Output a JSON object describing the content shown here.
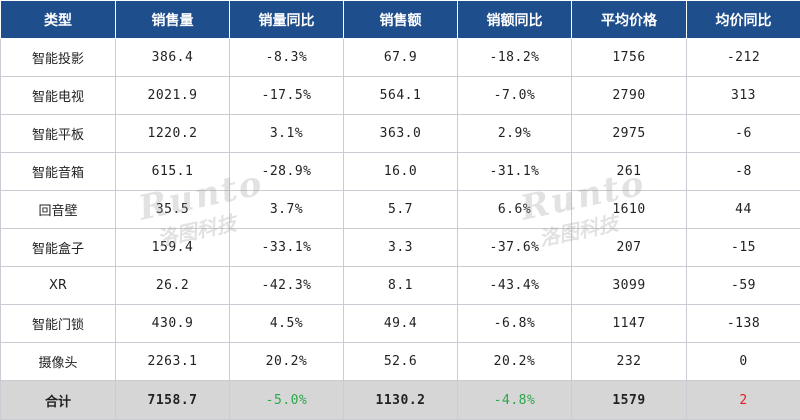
{
  "header": {
    "category": "类型",
    "sales_volume": "销售量",
    "sales_volume_yoy": "销量同比",
    "sales_amount": "销售额",
    "sales_amount_yoy": "销额同比",
    "avg_price": "平均价格",
    "avg_price_yoy": "均价同比"
  },
  "rows": [
    {
      "category": "智能投影",
      "volume": "386.4",
      "volume_yoy": "-8.3%",
      "amount": "67.9",
      "amount_yoy": "-18.2%",
      "price": "1756",
      "price_yoy": "-212"
    },
    {
      "category": "智能电视",
      "volume": "2021.9",
      "volume_yoy": "-17.5%",
      "amount": "564.1",
      "amount_yoy": "-7.0%",
      "price": "2790",
      "price_yoy": "313"
    },
    {
      "category": "智能平板",
      "volume": "1220.2",
      "volume_yoy": "3.1%",
      "amount": "363.0",
      "amount_yoy": "2.9%",
      "price": "2975",
      "price_yoy": "-6"
    },
    {
      "category": "智能音箱",
      "volume": "615.1",
      "volume_yoy": "-28.9%",
      "amount": "16.0",
      "amount_yoy": "-31.1%",
      "price": "261",
      "price_yoy": "-8"
    },
    {
      "category": "回音壁",
      "volume": "35.5",
      "volume_yoy": "3.7%",
      "amount": "5.7",
      "amount_yoy": "6.6%",
      "price": "1610",
      "price_yoy": "44"
    },
    {
      "category": "智能盒子",
      "volume": "159.4",
      "volume_yoy": "-33.1%",
      "amount": "3.3",
      "amount_yoy": "-37.6%",
      "price": "207",
      "price_yoy": "-15"
    },
    {
      "category": "XR",
      "volume": "26.2",
      "volume_yoy": "-42.3%",
      "amount": "8.1",
      "amount_yoy": "-43.4%",
      "price": "3099",
      "price_yoy": "-59"
    },
    {
      "category": "智能门锁",
      "volume": "430.9",
      "volume_yoy": "4.5%",
      "amount": "49.4",
      "amount_yoy": "-6.8%",
      "price": "1147",
      "price_yoy": "-138"
    },
    {
      "category": "摄像头",
      "volume": "2263.1",
      "volume_yoy": "20.2%",
      "amount": "52.6",
      "amount_yoy": "20.2%",
      "price": "232",
      "price_yoy": "0"
    }
  ],
  "total": {
    "category": "合计",
    "volume": "7158.7",
    "volume_yoy": "-5.0%",
    "amount": "1130.2",
    "amount_yoy": "-4.8%",
    "price": "1579",
    "price_yoy": "2"
  },
  "watermark": {
    "latin": "Runto",
    "cn": "洛图科技"
  },
  "colors": {
    "header_bg": "#1f4e8c",
    "positive": "#e02020",
    "negative": "#2aa84a",
    "total_bg": "#d6d6d6"
  }
}
